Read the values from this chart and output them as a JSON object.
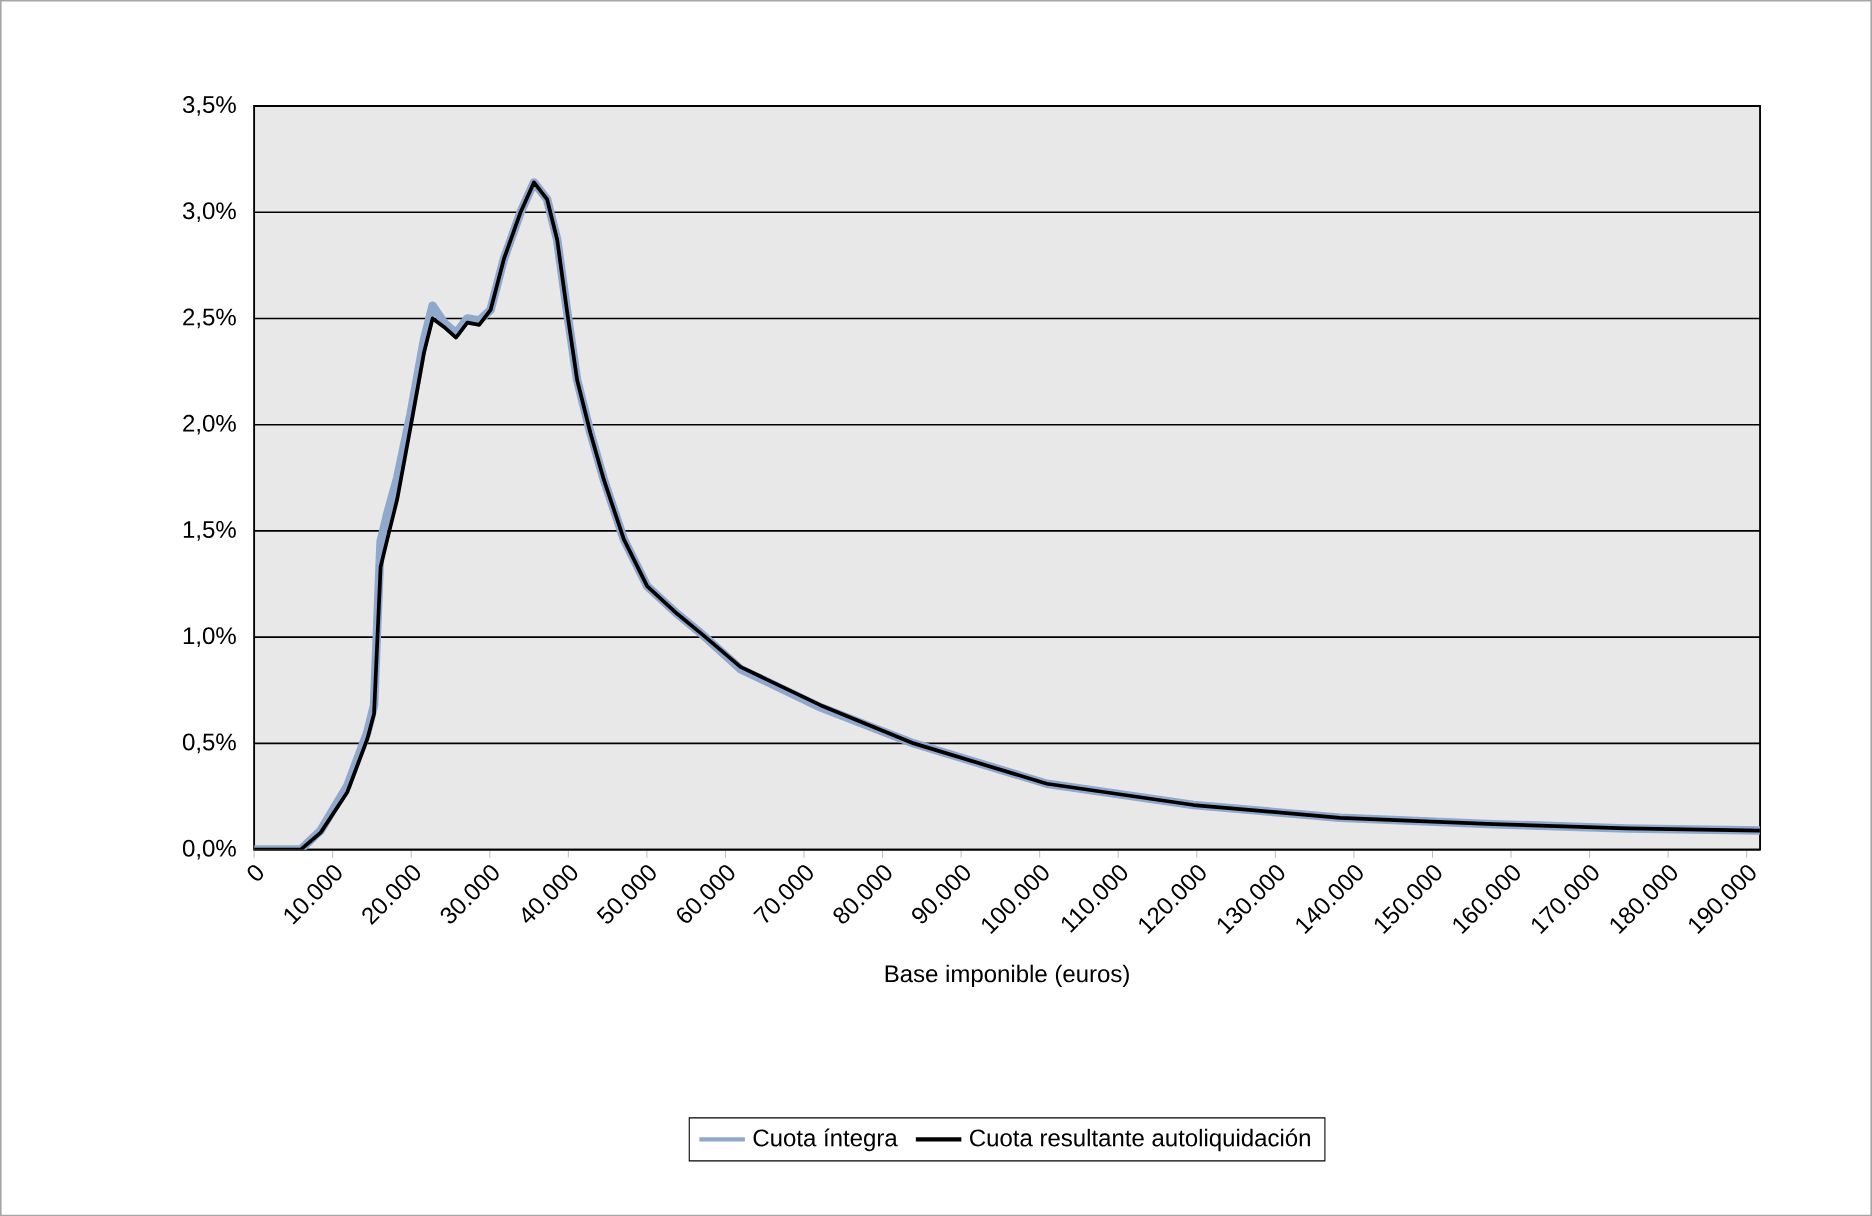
{
  "chart_data": {
    "type": "line",
    "xlabel": "Base imponible (euros)",
    "x": [
      0,
      5930,
      8470,
      11860,
      14400,
      15270,
      16100,
      16950,
      18220,
      19920,
      21630,
      22720,
      24170,
      25700,
      27140,
      28650,
      30100,
      31800,
      33920,
      35620,
      37300,
      38580,
      39850,
      41120,
      42820,
      44530,
      47070,
      50030,
      53850,
      56820,
      61910,
      72090,
      83970,
      100920,
      119590,
      138250,
      157760,
      174700,
      191680
    ],
    "series": [
      {
        "name": "Cuota íntegra",
        "color": "#8fa8cc",
        "values": [
          0,
          0,
          0.09,
          0.3,
          0.55,
          0.68,
          1.45,
          1.58,
          1.75,
          2.05,
          2.4,
          2.56,
          2.48,
          2.43,
          2.5,
          2.49,
          2.54,
          2.78,
          3.0,
          3.14,
          3.06,
          2.87,
          2.53,
          2.21,
          1.96,
          1.74,
          1.46,
          1.24,
          1.11,
          1.02,
          0.85,
          0.67,
          0.5,
          0.31,
          0.21,
          0.15,
          0.12,
          0.1,
          0.09
        ]
      },
      {
        "name": "Cuota resultante autoliquidación",
        "color": "#000000",
        "values": [
          0,
          0,
          0.08,
          0.27,
          0.52,
          0.64,
          1.33,
          1.46,
          1.65,
          1.99,
          2.34,
          2.5,
          2.46,
          2.41,
          2.48,
          2.47,
          2.54,
          2.78,
          3.0,
          3.14,
          3.06,
          2.87,
          2.53,
          2.21,
          1.96,
          1.74,
          1.46,
          1.24,
          1.11,
          1.02,
          0.86,
          0.68,
          0.5,
          0.31,
          0.21,
          0.15,
          0.12,
          0.1,
          0.09
        ]
      }
    ],
    "xlim": [
      0,
      191700
    ],
    "xticks": [
      0,
      {
        "value": 10000,
        "label": "10.000"
      },
      {
        "value": 20000,
        "label": "20.000"
      },
      {
        "value": 30000,
        "label": "30.000"
      },
      {
        "value": 40000,
        "label": "40.000"
      },
      {
        "value": 50000,
        "label": "50.000"
      },
      {
        "value": 60000,
        "label": "60.000"
      },
      {
        "value": 70000,
        "label": "70.000"
      },
      {
        "value": 80000,
        "label": "80.000"
      },
      {
        "value": 90000,
        "label": "90.000"
      },
      {
        "value": 100000,
        "label": "100.000"
      },
      {
        "value": 110000,
        "label": "110.000"
      },
      {
        "value": 120000,
        "label": "120.000"
      },
      {
        "value": 130000,
        "label": "130.000"
      },
      {
        "value": 140000,
        "label": "140.000"
      },
      {
        "value": 150000,
        "label": "150.000"
      },
      {
        "value": 160000,
        "label": "160.000"
      },
      {
        "value": 170000,
        "label": "170.000"
      },
      {
        "value": 180000,
        "label": "180.000"
      },
      {
        "value": 190000,
        "label": "190.000"
      }
    ],
    "ylim": [
      0,
      3.5
    ],
    "yticks": [
      {
        "value": 0,
        "label": "0,0%"
      },
      {
        "value": 0.5,
        "label": "0,5%"
      },
      {
        "value": 1,
        "label": "1,0%"
      },
      {
        "value": 1.5,
        "label": "1,5%"
      },
      {
        "value": 2,
        "label": "2,0%"
      },
      {
        "value": 2.5,
        "label": "2,5%"
      },
      {
        "value": 3,
        "label": "3,0%"
      },
      {
        "value": 3.5,
        "label": "3,5%"
      }
    ],
    "grid": "y",
    "legend": "bottom"
  }
}
